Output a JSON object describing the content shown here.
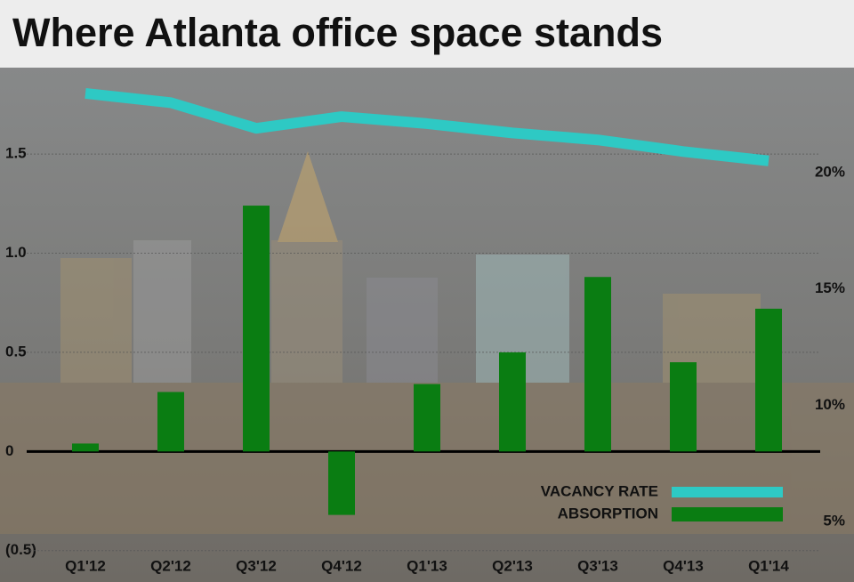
{
  "chart_data": {
    "type": "bar-line",
    "title": "Where Atlanta office space stands",
    "categories": [
      "Q1'12",
      "Q2'12",
      "Q3'12",
      "Q4'12",
      "Q1'13",
      "Q2'13",
      "Q3'13",
      "Q4'13",
      "Q1'14"
    ],
    "series": [
      {
        "name": "VACANCY RATE",
        "type": "line",
        "axis": "y2",
        "color": "#2ec9c4",
        "values": [
          23.4,
          23.0,
          21.9,
          22.4,
          22.1,
          21.7,
          21.4,
          20.9,
          20.5
        ]
      },
      {
        "name": "ABSORPTION",
        "type": "bar",
        "color": "#0a7d12",
        "values": [
          0.04,
          0.3,
          1.24,
          -0.32,
          0.34,
          0.5,
          0.88,
          0.45,
          0.72
        ]
      }
    ],
    "ylim": [
      -0.6,
      1.9
    ],
    "yticks": [
      {
        "value": -0.5,
        "label": "(0.5)"
      },
      0,
      0.5,
      {
        "value": 1.0,
        "label": "1.0"
      },
      1.5
    ],
    "y2lim": [
      2.9,
      24.2
    ],
    "y2ticks": [
      {
        "value": 5,
        "label": "5%"
      },
      {
        "value": 10,
        "label": "10%"
      },
      {
        "value": 15,
        "label": "15%"
      },
      {
        "value": 20,
        "label": "20%"
      }
    ],
    "grid": true
  }
}
